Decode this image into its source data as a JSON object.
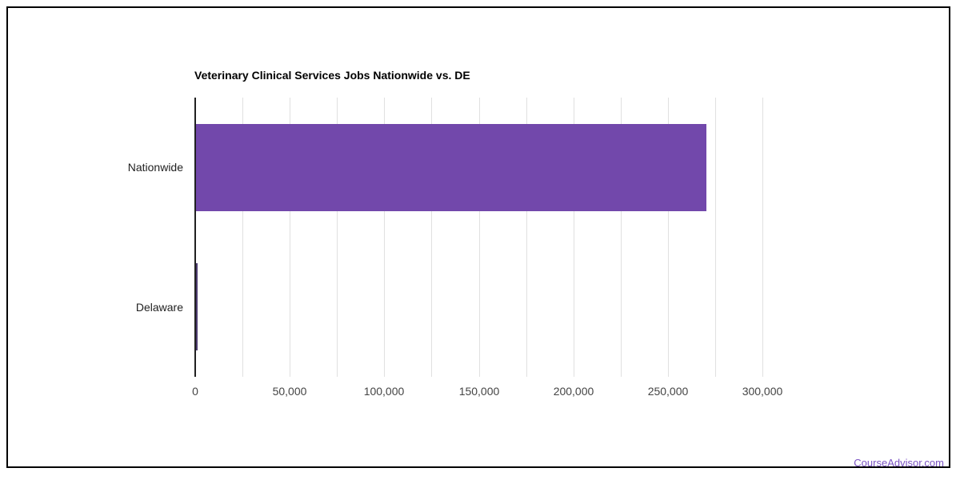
{
  "page": {
    "background_color": "#ffffff",
    "frame_border_color": "#000000"
  },
  "footer": {
    "link_label": "CourseAdvisor.com",
    "link_color": "#7a52c2"
  },
  "chart_data": {
    "type": "bar",
    "orientation": "horizontal",
    "title": "Veterinary Clinical Services Jobs Nationwide vs. DE",
    "title_color": "#000000",
    "categories": [
      "Nationwide",
      "Delaware"
    ],
    "values": [
      270000,
      850
    ],
    "bar_colors": [
      "#7248ab",
      "#4b3a6e"
    ],
    "xlabel": "",
    "ylabel": "",
    "xlim": [
      0,
      300000
    ],
    "x_tick_step": 50000,
    "x_minor_gridline_step": 25000,
    "x_tick_labels": [
      "0",
      "50,000",
      "100,000",
      "150,000",
      "200,000",
      "250,000",
      "300,000"
    ],
    "grid": true,
    "gridline_color": "#e0e0e0",
    "axis_color": "#212121",
    "tick_label_color": "#444444",
    "category_label_color": "#222222",
    "legend": "none"
  }
}
